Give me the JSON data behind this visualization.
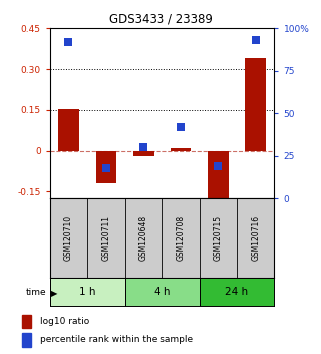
{
  "title": "GDS3433 / 23389",
  "samples": [
    "GSM120710",
    "GSM120711",
    "GSM120648",
    "GSM120708",
    "GSM120715",
    "GSM120716"
  ],
  "log10_ratio": [
    0.155,
    -0.12,
    -0.02,
    0.01,
    -0.175,
    0.34
  ],
  "percentile_rank": [
    0.92,
    0.18,
    0.3,
    0.42,
    0.19,
    0.93
  ],
  "bar_color": "#aa1100",
  "dot_color": "#2244cc",
  "left_ylim": [
    -0.175,
    0.45
  ],
  "right_ylim": [
    0,
    1.0
  ],
  "left_yticks": [
    -0.15,
    0,
    0.15,
    0.3,
    0.45
  ],
  "right_yticks": [
    0,
    0.25,
    0.5,
    0.75,
    1.0
  ],
  "right_yticklabels": [
    "0",
    "25",
    "50",
    "75",
    "100%"
  ],
  "left_yticklabels": [
    "-0.15",
    "0",
    "0.15",
    "0.30",
    "0.45"
  ],
  "hlines_dotted": [
    0.15,
    0.3
  ],
  "hline_dashed": 0,
  "time_groups": [
    {
      "label": "1 h",
      "cols": [
        0,
        1
      ],
      "color": "#c8f0c0"
    },
    {
      "label": "4 h",
      "cols": [
        2,
        3
      ],
      "color": "#88dd88"
    },
    {
      "label": "24 h",
      "cols": [
        4,
        5
      ],
      "color": "#33bb33"
    }
  ],
  "bar_width": 0.55,
  "dot_size": 28,
  "left_tick_color": "#cc2200",
  "right_tick_color": "#2244cc",
  "background_color": "#ffffff",
  "plot_bg": "#ffffff",
  "sample_box_color": "#cccccc",
  "sample_box_border": "#000000"
}
